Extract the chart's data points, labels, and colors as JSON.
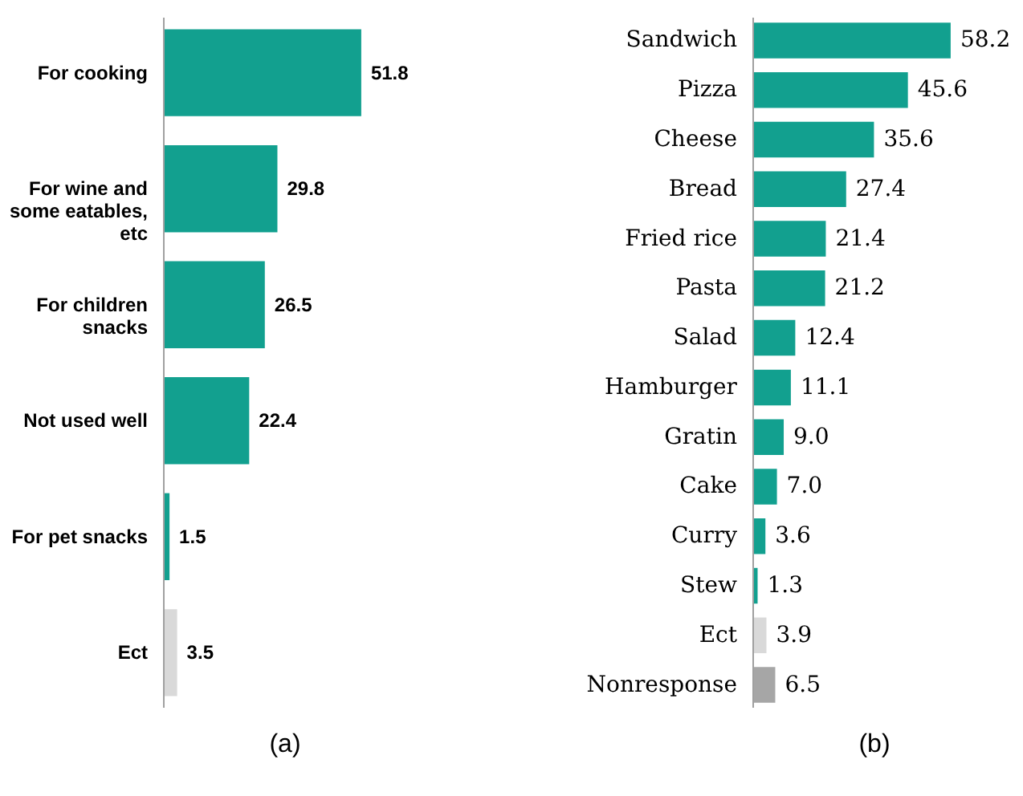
{
  "chart_data": [
    {
      "type": "bar",
      "orientation": "horizontal",
      "xlabel": "(a)",
      "data_labels": true,
      "categories": [
        "For cooking",
        "For wine and some eatables, etc",
        "For children snacks",
        "Not used well",
        "For pet snacks",
        "Ect"
      ],
      "values": [
        51.8,
        29.8,
        26.5,
        22.4,
        1.5,
        3.5
      ],
      "colors": [
        "#12a08f",
        "#12a08f",
        "#12a08f",
        "#12a08f",
        "#12a08f",
        "#d9d9d9"
      ]
    },
    {
      "type": "bar",
      "orientation": "horizontal",
      "xlabel": "(b)",
      "value_labels": [
        "58.2",
        "45.6",
        "35.6",
        "27.4",
        "21.4",
        "21.2",
        "12.4",
        "11.1",
        "9.0",
        "7.0",
        "3.6",
        "1.3",
        "3.9",
        "6.5"
      ],
      "categories": [
        "Sandwich",
        "Pizza",
        "Cheese",
        "Bread",
        "Fried rice",
        "Pasta",
        "Salad",
        "Hamburger",
        "Gratin",
        "Cake",
        "Curry",
        "Stew",
        "Ect",
        "Nonresponse"
      ],
      "values": [
        58.2,
        45.6,
        35.6,
        27.4,
        21.4,
        21.2,
        12.4,
        11.1,
        9.0,
        7.0,
        3.6,
        1.3,
        3.9,
        6.5
      ],
      "colors": [
        "#12a08f",
        "#12a08f",
        "#12a08f",
        "#12a08f",
        "#12a08f",
        "#12a08f",
        "#12a08f",
        "#12a08f",
        "#12a08f",
        "#12a08f",
        "#12a08f",
        "#12a08f",
        "#d9d9d9",
        "#a6a6a6"
      ]
    }
  ]
}
